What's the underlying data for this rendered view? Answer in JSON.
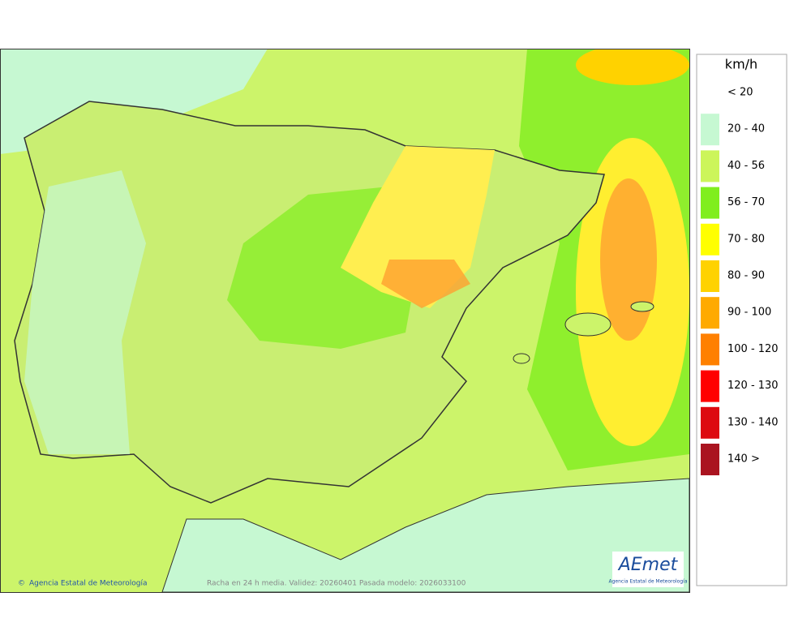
{
  "map": {
    "footer_left": "Agencia Estatal de Meteorología",
    "footer_center": "Racha en 24 h media. Validez: 20260401 Pasada modelo: 2026033100",
    "logo": {
      "title": "AEmet",
      "subtitle": "Agencia Estatal de Meteorología"
    }
  },
  "legend": {
    "title": "km/h",
    "items": [
      {
        "label": "< 20"
      },
      {
        "label": "20 - 40",
        "color": "#c6f8d2"
      },
      {
        "label": "40 - 56",
        "color": "#ccf55a"
      },
      {
        "label": "56 - 70",
        "color": "#80ee1e"
      },
      {
        "label": "70 - 80",
        "color": "#ffff00"
      },
      {
        "label": "80 - 90",
        "color": "#ffd200"
      },
      {
        "label": "90 - 100",
        "color": "#ffaa00"
      },
      {
        "label": "100 - 120",
        "color": "#ff8000"
      },
      {
        "label": "120 - 130",
        "color": "#ff0000"
      },
      {
        "label": "130 - 140",
        "color": "#dd0a10"
      },
      {
        "label": "140 >",
        "color": "#aa1420"
      }
    ]
  }
}
